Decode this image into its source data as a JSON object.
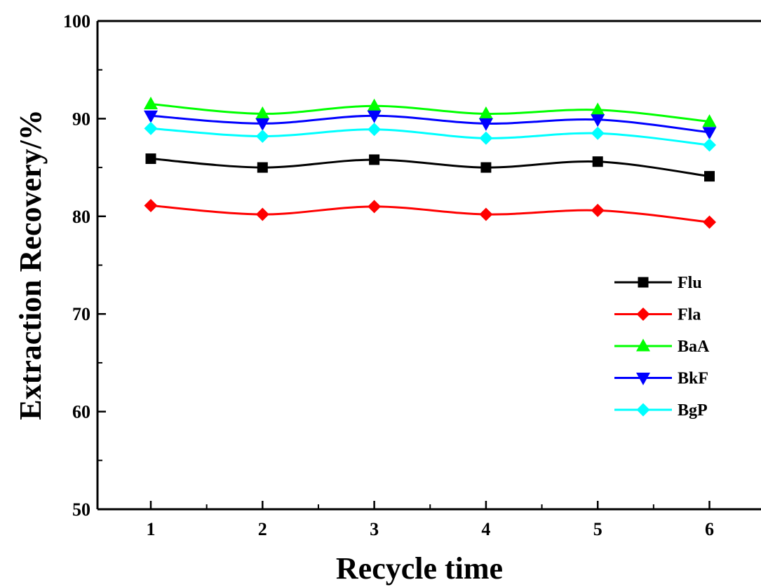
{
  "chart_data": {
    "type": "line",
    "xlabel": "Recycle time",
    "ylabel": "Extraction Recovery/%",
    "x": [
      1,
      2,
      3,
      4,
      5,
      6
    ],
    "xticks": [
      "1",
      "2",
      "3",
      "4",
      "5",
      "6"
    ],
    "ylim": [
      50,
      100
    ],
    "yticks": [
      "50",
      "60",
      "70",
      "80",
      "90",
      "100"
    ],
    "grid": false,
    "legend_position": "right",
    "series": [
      {
        "name": "Flu",
        "values": [
          85.9,
          85.0,
          85.8,
          85.0,
          85.6,
          84.1
        ],
        "color": "#000000",
        "marker": "square"
      },
      {
        "name": "Fla",
        "values": [
          81.1,
          80.2,
          81.0,
          80.2,
          80.6,
          79.4
        ],
        "color": "#ff0000",
        "marker": "diamond"
      },
      {
        "name": "BaA",
        "values": [
          91.5,
          90.5,
          91.3,
          90.5,
          90.9,
          89.7
        ],
        "color": "#00ff00",
        "marker": "triangle-up"
      },
      {
        "name": "BkF",
        "values": [
          90.3,
          89.5,
          90.3,
          89.5,
          89.9,
          88.6
        ],
        "color": "#0000ff",
        "marker": "triangle-down"
      },
      {
        "name": "BgP",
        "values": [
          89.0,
          88.2,
          88.9,
          88.0,
          88.5,
          87.3
        ],
        "color": "#00ffff",
        "marker": "diamond"
      }
    ]
  }
}
